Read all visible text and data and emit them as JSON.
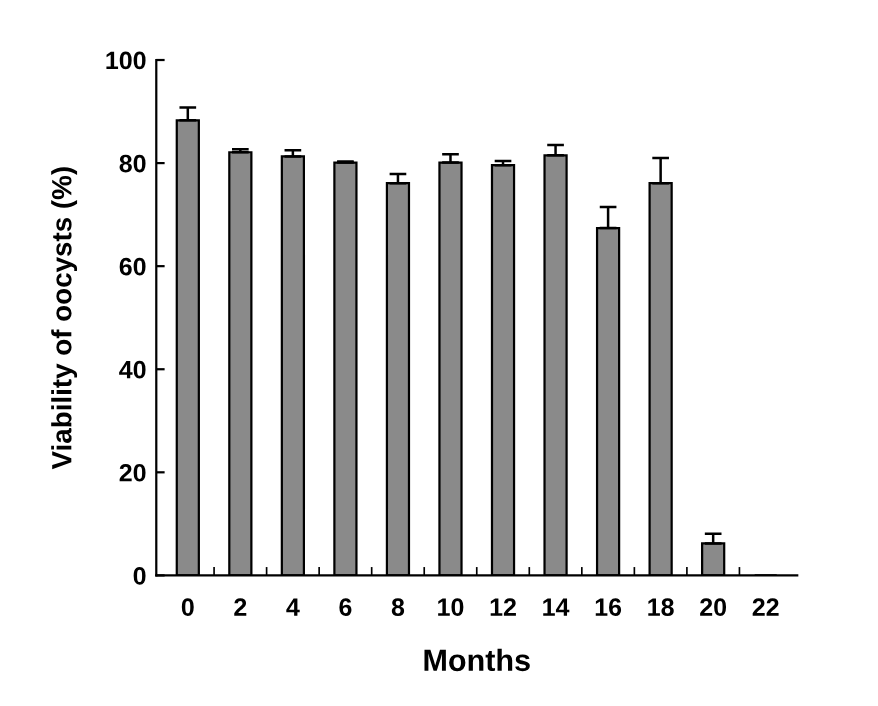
{
  "chart_data": {
    "type": "bar",
    "xlabel": "Months",
    "ylabel": "Viability of oocysts (%)",
    "categories": [
      "0",
      "2",
      "4",
      "6",
      "8",
      "10",
      "12",
      "14",
      "16",
      "18",
      "20",
      "22"
    ],
    "values": [
      88.3,
      82.1,
      81.3,
      80.1,
      76.1,
      80.1,
      79.6,
      81.5,
      67.4,
      76.1,
      6.2,
      0
    ],
    "errors": [
      [
        88.3,
        90.8
      ],
      [
        82.1,
        82.7
      ],
      [
        81.3,
        82.5
      ],
      [
        80.1,
        80.3
      ],
      [
        76.1,
        77.9
      ],
      [
        80.1,
        81.7
      ],
      [
        79.6,
        80.4
      ],
      [
        81.5,
        83.5
      ],
      [
        67.4,
        71.5
      ],
      [
        76.1,
        81.0
      ],
      [
        6.2,
        8.1
      ],
      null
    ],
    "color": "#8a8a8a",
    "ylim": [
      0,
      100
    ],
    "yticks": [
      0,
      20,
      40,
      60,
      80,
      100
    ],
    "grid": false
  }
}
